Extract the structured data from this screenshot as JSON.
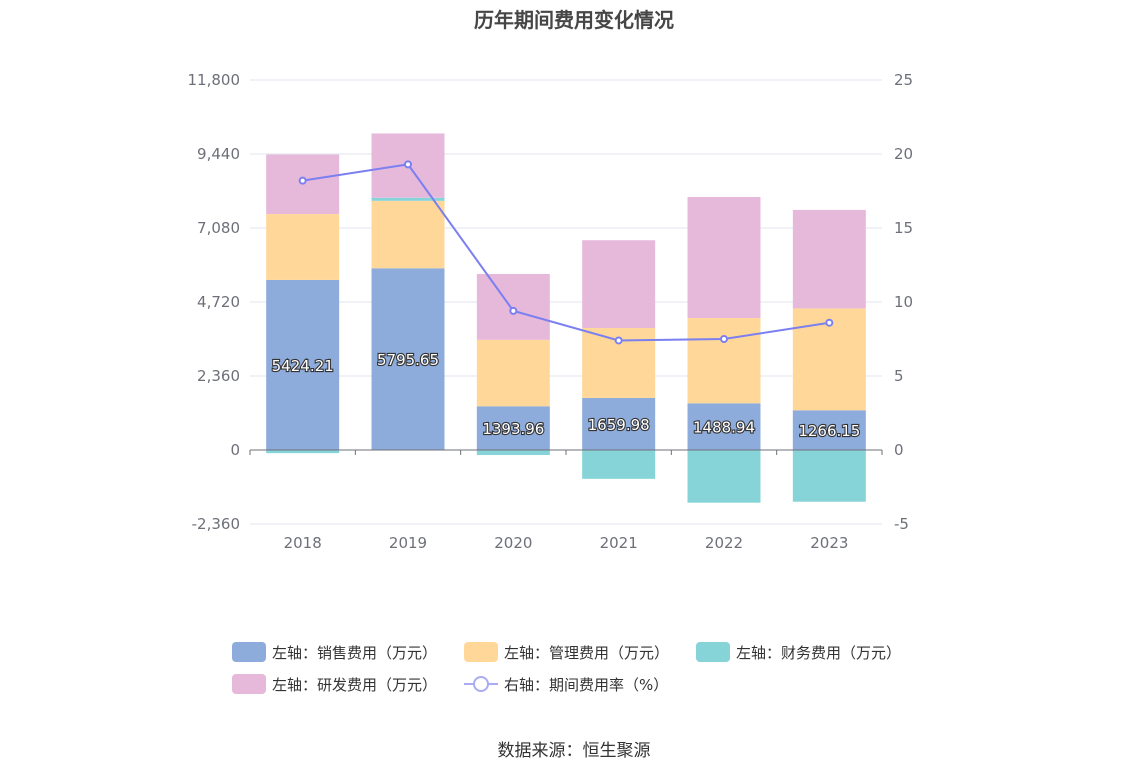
{
  "title": "历年期间费用变化情况",
  "source": "数据来源：恒生聚源",
  "chart_data": {
    "type": "bar",
    "stacked": true,
    "categories": [
      "2018",
      "2019",
      "2020",
      "2021",
      "2022",
      "2023"
    ],
    "y_left": {
      "ticks": [
        "11,800",
        "9,440",
        "7,080",
        "4,720",
        "2,360",
        "0",
        "-2,360"
      ],
      "ylim": [
        -2360,
        11800
      ]
    },
    "y_right": {
      "ticks": [
        "25",
        "20",
        "15",
        "10",
        "5",
        "0",
        "-5"
      ],
      "ylim": [
        -5,
        25
      ]
    },
    "series": [
      {
        "name": "左轴：销售费用（万元）",
        "axis": "left",
        "kind": "bar",
        "color": "#8eacdb",
        "values": [
          5424.21,
          5795.65,
          1393.96,
          1659.98,
          1488.94,
          1266.15
        ],
        "labels": [
          "5424.21",
          "5795.65",
          "1393.96",
          "1659.98",
          "1488.94",
          "1266.15"
        ]
      },
      {
        "name": "左轴：管理费用（万元）",
        "axis": "left",
        "kind": "bar",
        "color": "#ffd899",
        "values": [
          2100,
          2150,
          2120,
          2230,
          2720,
          3250
        ]
      },
      {
        "name": "左轴：财务费用（万元）",
        "axis": "left",
        "kind": "bar",
        "color": "#86d4d8",
        "values": [
          -100,
          100,
          -160,
          -920,
          -1680,
          -1650
        ]
      },
      {
        "name": "左轴：研发费用（万元）",
        "axis": "left",
        "kind": "bar",
        "color": "#e6b9db",
        "values": [
          1900,
          2050,
          2100,
          2800,
          3860,
          3140
        ]
      },
      {
        "name": "右轴：期间费用率（%）",
        "axis": "right",
        "kind": "line",
        "color": "#7b7ff0",
        "values": [
          18.2,
          19.3,
          9.4,
          7.4,
          7.5,
          8.6
        ]
      }
    ],
    "legend_position": "bottom",
    "grid": true
  }
}
